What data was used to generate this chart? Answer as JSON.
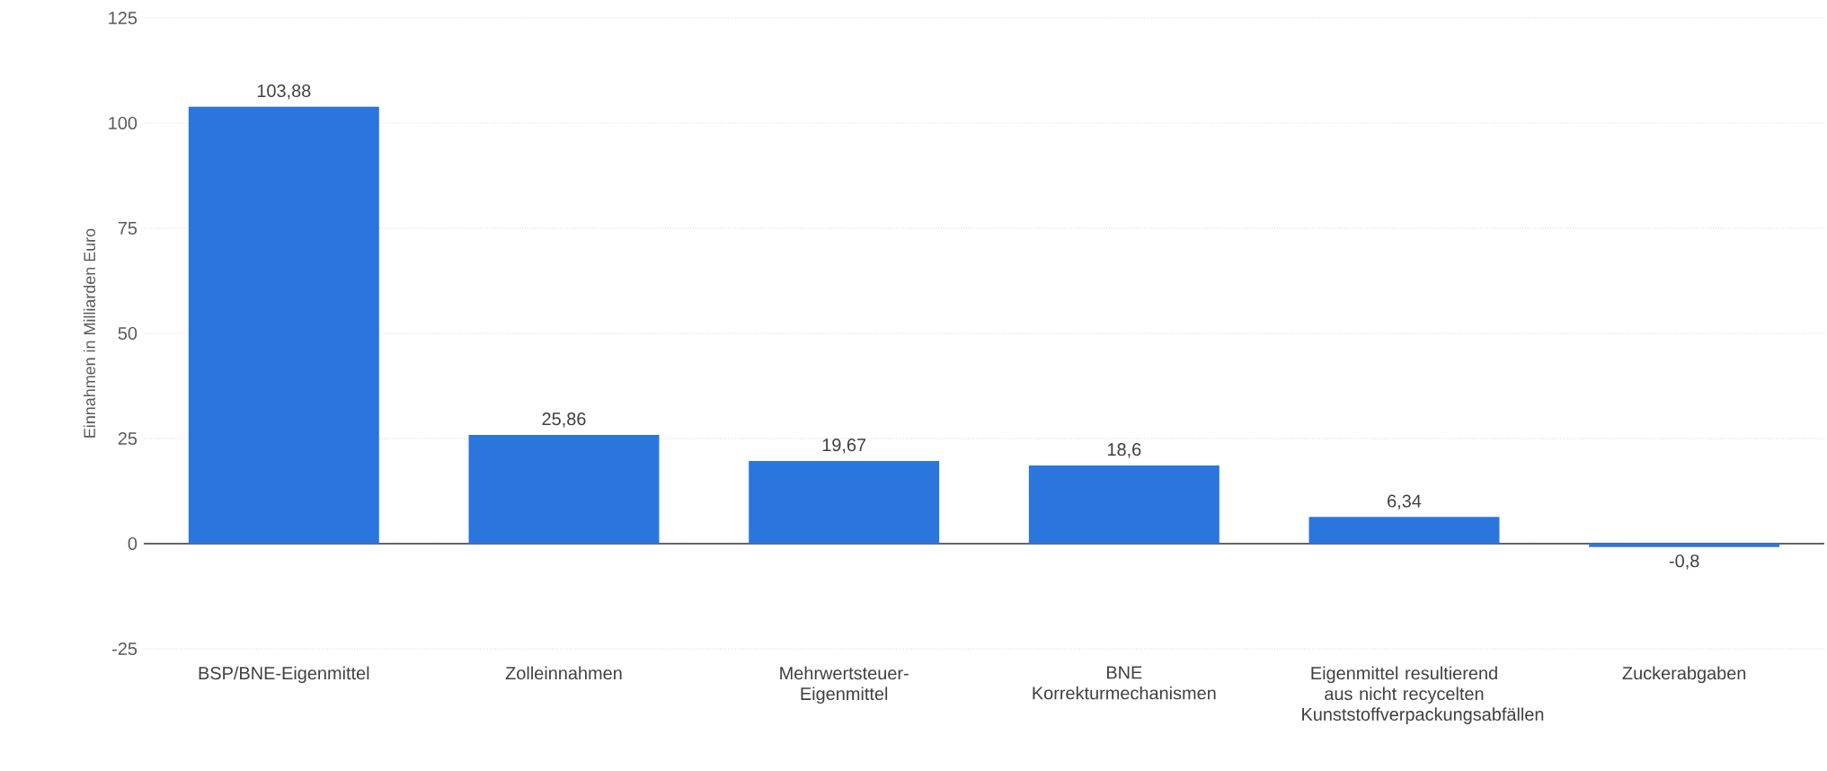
{
  "chart_data": {
    "type": "bar",
    "ylabel": "Einnahmen in Milliarden Euro",
    "categories": [
      "BSP/BNE-Eigenmittel",
      "Zolleinnahmen",
      "Mehrwertsteuer-Eigenmittel",
      "BNE Korrekturmechanismen",
      "Eigenmittel resultierend aus nicht recycelten Kunststoffverpackungsabfällen",
      "Zuckerabgaben"
    ],
    "values": [
      103.88,
      25.86,
      19.67,
      18.6,
      6.34,
      -0.8
    ],
    "value_labels": [
      "103,88",
      "25,86",
      "19,67",
      "18,6",
      "6,34",
      "-0,8"
    ],
    "color": "#2a76dd",
    "ylim": [
      -25,
      125
    ],
    "yticks": [
      -25,
      0,
      25,
      50,
      75,
      100,
      125
    ],
    "grid": "y"
  }
}
